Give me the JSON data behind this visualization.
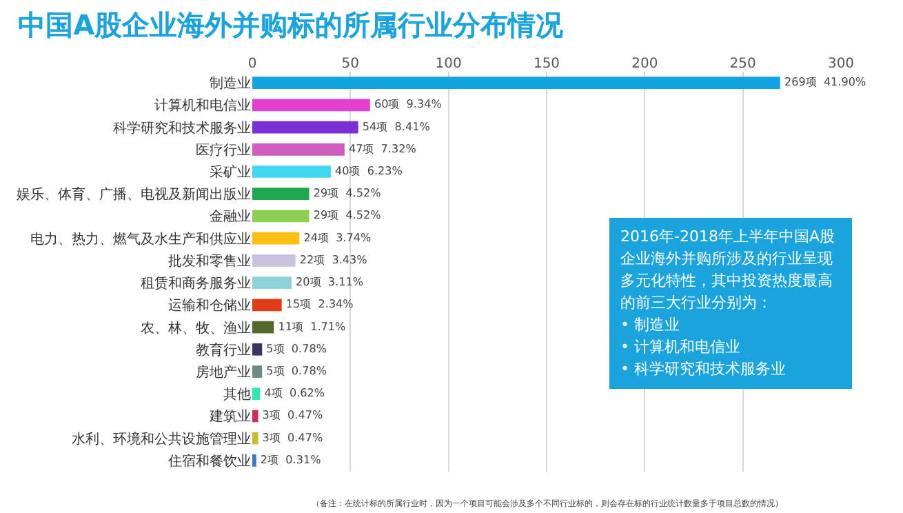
{
  "chart_data": {
    "type": "bar",
    "orientation": "horizontal",
    "title": "中国A股企业海外并购标的所属行业分布情况",
    "categories": [
      "制造业",
      "计算机和电信业",
      "科学研究和技术服务业",
      "医疗行业",
      "采矿业",
      "娱乐、体育、广播、电视及新闻出版业",
      "金融业",
      "电力、热力、燃气及水生产和供应业",
      "批发和零售业",
      "租赁和商务服务业",
      "运输和仓储业",
      "农、林、牧、渔业",
      "教育行业",
      "房地产业",
      "其他",
      "建筑业",
      "水利、环境和公共设施管理业",
      "住宿和餐饮业"
    ],
    "values": [
      269,
      60,
      54,
      47,
      40,
      29,
      29,
      24,
      22,
      20,
      15,
      11,
      5,
      5,
      4,
      3,
      3,
      2
    ],
    "value_labels": [
      "269项  41.90%",
      "60项  9.34%",
      "54项  8.41%",
      "47项  7.32%",
      "40项  6.23%",
      "29项  4.52%",
      "29项  4.52%",
      "24项  3.74%",
      "22项  3.43%",
      "20项  3.11%",
      "15项  2.34%",
      "11项  1.71%",
      "5项  0.78%",
      "5项  0.78%",
      "4项  0.62%",
      "3项  0.47%",
      "3项  0.47%",
      "2项  0.31%"
    ],
    "colors": [
      "#12a3e0",
      "#e43fcf",
      "#7a2fd4",
      "#d05cbe",
      "#3fd8f0",
      "#1fa850",
      "#8ccf52",
      "#ffbf12",
      "#c9c2dc",
      "#8ed2dc",
      "#e23b1c",
      "#55672a",
      "#3a3560",
      "#6e8a86",
      "#2fe8b0",
      "#c8305a",
      "#c2c030",
      "#3b78c8"
    ],
    "xlim": [
      0,
      300
    ],
    "xticks": [
      0,
      50,
      100,
      150,
      200,
      250,
      300
    ],
    "grid": "x",
    "annotations": [
      "2016年-2018年上半年中国A股企业海外并购所涉及的行业呈现多元化特性，其中投资热度最高的前三大行业分别为：\n•  制造业\n•  计算机和电信业\n•  科学研究和技术服务业",
      "（备注：在统计标的所属行业时，因为一个项目可能会涉及多个不同行业标的，则会存在标的行业统计数量多于项目总数的情况）"
    ]
  }
}
